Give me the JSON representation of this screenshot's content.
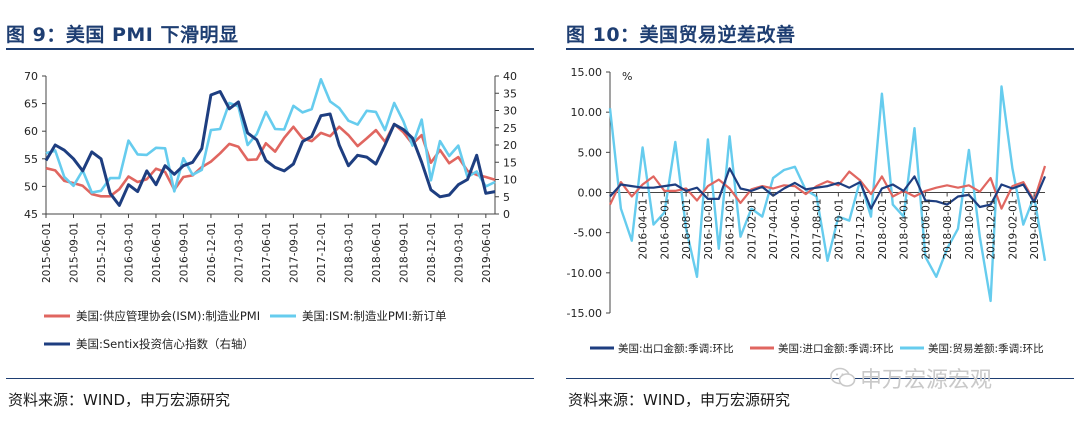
{
  "left": {
    "title": "图 9：美国 PMI 下滑明显",
    "source": "资料来源：WIND，申万宏源研究"
  },
  "right": {
    "title": "图 10：美国贸易逆差改善",
    "source": "资料来源：WIND，申万宏源研究"
  },
  "watermark": {
    "text": "申万宏源宏观",
    "icon": "wechat-icon"
  },
  "chart_data": [
    {
      "type": "line",
      "title": "",
      "x": [
        "2015-06-01",
        "2015-07-01",
        "2015-08-01",
        "2015-09-01",
        "2015-10-01",
        "2015-11-01",
        "2015-12-01",
        "2016-01-01",
        "2016-02-01",
        "2016-03-01",
        "2016-04-01",
        "2016-05-01",
        "2016-06-01",
        "2016-07-01",
        "2016-08-01",
        "2016-09-01",
        "2016-10-01",
        "2016-11-01",
        "2016-12-01",
        "2017-01-01",
        "2017-02-01",
        "2017-03-01",
        "2017-04-01",
        "2017-05-01",
        "2017-06-01",
        "2017-07-01",
        "2017-08-01",
        "2017-09-01",
        "2017-10-01",
        "2017-11-01",
        "2017-12-01",
        "2018-01-01",
        "2018-02-01",
        "2018-03-01",
        "2018-04-01",
        "2018-05-01",
        "2018-06-01",
        "2018-07-01",
        "2018-08-01",
        "2018-09-01",
        "2018-10-01",
        "2018-11-01",
        "2018-12-01",
        "2019-01-01",
        "2019-02-01",
        "2019-03-01",
        "2019-04-01",
        "2019-05-01",
        "2019-06-01",
        "2019-07-01"
      ],
      "x_tick_labels": [
        "2015-06-01",
        "2015-09-01",
        "2015-12-01",
        "2016-03-01",
        "2016-06-01",
        "2016-09-01",
        "2016-12-01",
        "2017-03-01",
        "2017-06-01",
        "2017-09-01",
        "2017-12-01",
        "2018-03-01",
        "2018-06-01",
        "2018-09-01",
        "2018-12-01",
        "2019-03-01",
        "2019-06-01"
      ],
      "ylim": [
        45,
        70
      ],
      "y_ticks": [
        45,
        50,
        55,
        60,
        65,
        70
      ],
      "y2lim": [
        0,
        40
      ],
      "y2_ticks": [
        0,
        5,
        10,
        15,
        20,
        25,
        30,
        35,
        40
      ],
      "grid": false,
      "legend_position": "bottom",
      "series": [
        {
          "name": "美国:供应管理协会(ISM):制造业PMI",
          "color": "#e06660",
          "axis": "left",
          "values": [
            53.3,
            52.9,
            51.0,
            50.6,
            50.1,
            48.6,
            48.2,
            48.2,
            49.5,
            51.8,
            50.8,
            51.3,
            53.2,
            52.6,
            49.4,
            51.7,
            52.0,
            53.5,
            54.5,
            56.0,
            57.7,
            57.2,
            54.8,
            54.9,
            57.8,
            56.3,
            58.8,
            60.8,
            58.7,
            58.2,
            59.7,
            59.1,
            60.8,
            59.3,
            57.3,
            58.7,
            60.2,
            58.1,
            61.3,
            59.8,
            57.7,
            59.3,
            54.3,
            56.6,
            54.2,
            55.3,
            52.8,
            52.1,
            51.7,
            51.2
          ]
        },
        {
          "name": "美国:ISM:制造业PMI:新订单",
          "color": "#66ccee",
          "axis": "left",
          "values": [
            56.0,
            56.5,
            51.7,
            50.1,
            52.9,
            48.9,
            49.2,
            51.5,
            51.5,
            58.3,
            55.8,
            55.7,
            57.0,
            56.9,
            49.1,
            55.1,
            52.1,
            53.0,
            60.2,
            60.4,
            65.1,
            64.5,
            57.5,
            59.5,
            63.5,
            60.4,
            60.3,
            64.6,
            63.4,
            64.0,
            69.4,
            65.4,
            64.2,
            61.9,
            61.2,
            63.7,
            63.5,
            60.2,
            65.1,
            61.8,
            57.4,
            62.1,
            51.1,
            58.2,
            55.5,
            57.4,
            51.7,
            52.7,
            50.0,
            50.8
          ]
        },
        {
          "name": "美国:Sentix投资信心指数（右轴）",
          "color": "#1e3e80",
          "axis": "right",
          "values": [
            15.5,
            20.0,
            18.5,
            16.0,
            12.5,
            18.0,
            16.0,
            6.0,
            2.5,
            8.5,
            6.5,
            12.5,
            8.5,
            14.0,
            11.5,
            14.0,
            15.0,
            19.0,
            34.5,
            35.5,
            30.5,
            32.5,
            23.5,
            21.5,
            15.5,
            13.5,
            12.5,
            14.5,
            21.0,
            22.5,
            28.5,
            29.0,
            20.0,
            14.0,
            17.0,
            16.5,
            14.5,
            20.0,
            26.0,
            24.5,
            22.0,
            15.0,
            7.0,
            5.0,
            5.5,
            8.5,
            10.0,
            17.0,
            6.0,
            6.5
          ]
        }
      ]
    },
    {
      "type": "line",
      "title": "",
      "ylabel": "%",
      "x": [
        "2016-01-01",
        "2016-02-01",
        "2016-03-01",
        "2016-04-01",
        "2016-05-01",
        "2016-06-01",
        "2016-07-01",
        "2016-08-01",
        "2016-09-01",
        "2016-10-01",
        "2016-11-01",
        "2016-12-01",
        "2017-01-01",
        "2017-02-01",
        "2017-03-01",
        "2017-04-01",
        "2017-05-01",
        "2017-06-01",
        "2017-07-01",
        "2017-08-01",
        "2017-09-01",
        "2017-10-01",
        "2017-11-01",
        "2017-12-01",
        "2018-01-01",
        "2018-02-01",
        "2018-03-01",
        "2018-04-01",
        "2018-05-01",
        "2018-06-01",
        "2018-07-01",
        "2018-08-01",
        "2018-09-01",
        "2018-10-01",
        "2018-11-01",
        "2018-12-01",
        "2019-01-01",
        "2019-02-01",
        "2019-03-01",
        "2019-04-01",
        "2019-05-01"
      ],
      "x_tick_labels": [
        "2016-04-01",
        "2016-06-01",
        "2016-08-01",
        "2016-10-01",
        "2016-12-01",
        "2017-02-01",
        "2017-04-01",
        "2017-06-01",
        "2017-08-01",
        "2017-10-01",
        "2017-12-01",
        "2018-02-01",
        "2018-04-01",
        "2018-06-01",
        "2018-08-01",
        "2018-10-01",
        "2018-12-01",
        "2019-02-01",
        "2019-04-01"
      ],
      "ylim": [
        -15,
        15
      ],
      "y_ticks": [
        "-15.00",
        "-10.00",
        "-5.00",
        "0.00",
        "5.00",
        "10.00",
        "15.00"
      ],
      "grid": false,
      "legend_position": "bottom",
      "series": [
        {
          "name": "美国:出口金额:季调:环比",
          "color": "#1e3e80",
          "values": [
            -0.5,
            1.0,
            0.8,
            0.6,
            0.6,
            0.8,
            1.0,
            0.2,
            0.6,
            -0.8,
            -0.8,
            3.0,
            0.5,
            0.2,
            0.7,
            -0.4,
            0.5,
            1.2,
            0.4,
            0.6,
            0.8,
            1.2,
            0.6,
            1.3,
            -2.0,
            0.5,
            1.0,
            0.2,
            2.0,
            -1.0,
            -1.1,
            -1.5,
            -0.5,
            -0.3,
            -1.8,
            -1.5,
            1.0,
            0.5,
            1.0,
            -1.2,
            2.0
          ]
        },
        {
          "name": "美国:进口金额:季调:环比",
          "color": "#e06660",
          "values": [
            -1.5,
            1.3,
            -0.5,
            1.0,
            2.0,
            0.2,
            0.2,
            0.5,
            -1.0,
            0.8,
            1.6,
            0.5,
            -1.3,
            0.4,
            0.8,
            0.5,
            0.9,
            0.8,
            -0.2,
            0.8,
            1.4,
            0.9,
            2.6,
            1.5,
            -0.2,
            2.0,
            -0.5,
            0.2,
            -0.5,
            0.2,
            0.6,
            0.9,
            0.6,
            0.9,
            0.1,
            1.8,
            -2.0,
            0.8,
            1.3,
            -1.0,
            3.3
          ]
        },
        {
          "name": "美国:贸易差额:季调:环比",
          "color": "#66ccee",
          "values": [
            10.5,
            -2.0,
            -6.0,
            5.6,
            -4.0,
            -2.5,
            6.3,
            -4.5,
            -10.5,
            6.6,
            -7.0,
            7.0,
            -5.5,
            -2.0,
            -3.0,
            1.8,
            2.8,
            3.2,
            0.3,
            -0.5,
            -8.5,
            -3.0,
            -3.5,
            1.5,
            -3.0,
            12.3,
            -1.5,
            -3.0,
            8.0,
            -8.0,
            -10.5,
            -7.0,
            -4.5,
            5.3,
            -5.5,
            -13.5,
            13.2,
            3.0,
            -4.0,
            -0.5,
            -8.5
          ]
        }
      ]
    }
  ]
}
